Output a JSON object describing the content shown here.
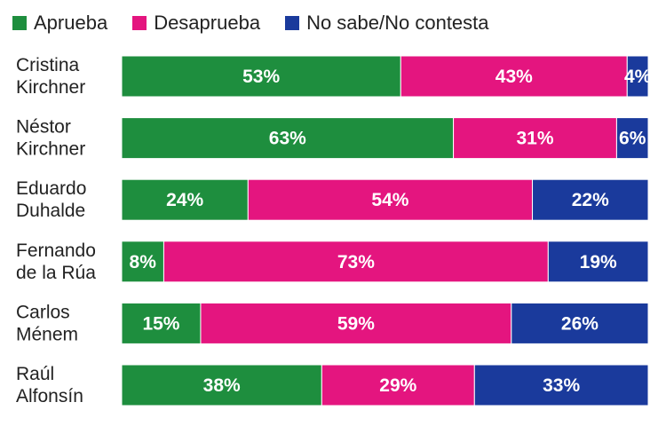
{
  "colors": {
    "approve": "#1e8e3e",
    "disapprove": "#e4157f",
    "unknown": "#1a3a9c",
    "text": "#222222",
    "value_text": "#ffffff"
  },
  "chart_data": {
    "type": "bar",
    "orientation": "horizontal",
    "stacked": true,
    "normalized_percent": true,
    "title": "",
    "xlim": [
      0,
      100
    ],
    "legend_position": "top-left",
    "categories": [
      [
        "Cristina",
        "Kirchner"
      ],
      [
        "Néstor",
        "Kirchner"
      ],
      [
        "Eduardo",
        "Duhalde"
      ],
      [
        "Fernando",
        "de la Rúa"
      ],
      [
        "Carlos",
        "Ménem"
      ],
      [
        "Raúl",
        "Alfonsín"
      ]
    ],
    "series": [
      {
        "name": "Aprueba",
        "color_key": "approve",
        "values": [
          53,
          63,
          24,
          8,
          15,
          38
        ]
      },
      {
        "name": "Desaprueba",
        "color_key": "disapprove",
        "values": [
          43,
          31,
          54,
          73,
          59,
          29
        ]
      },
      {
        "name": "No sabe/No contesta",
        "color_key": "unknown",
        "values": [
          4,
          6,
          22,
          19,
          26,
          33
        ]
      }
    ],
    "value_suffix": "%"
  }
}
